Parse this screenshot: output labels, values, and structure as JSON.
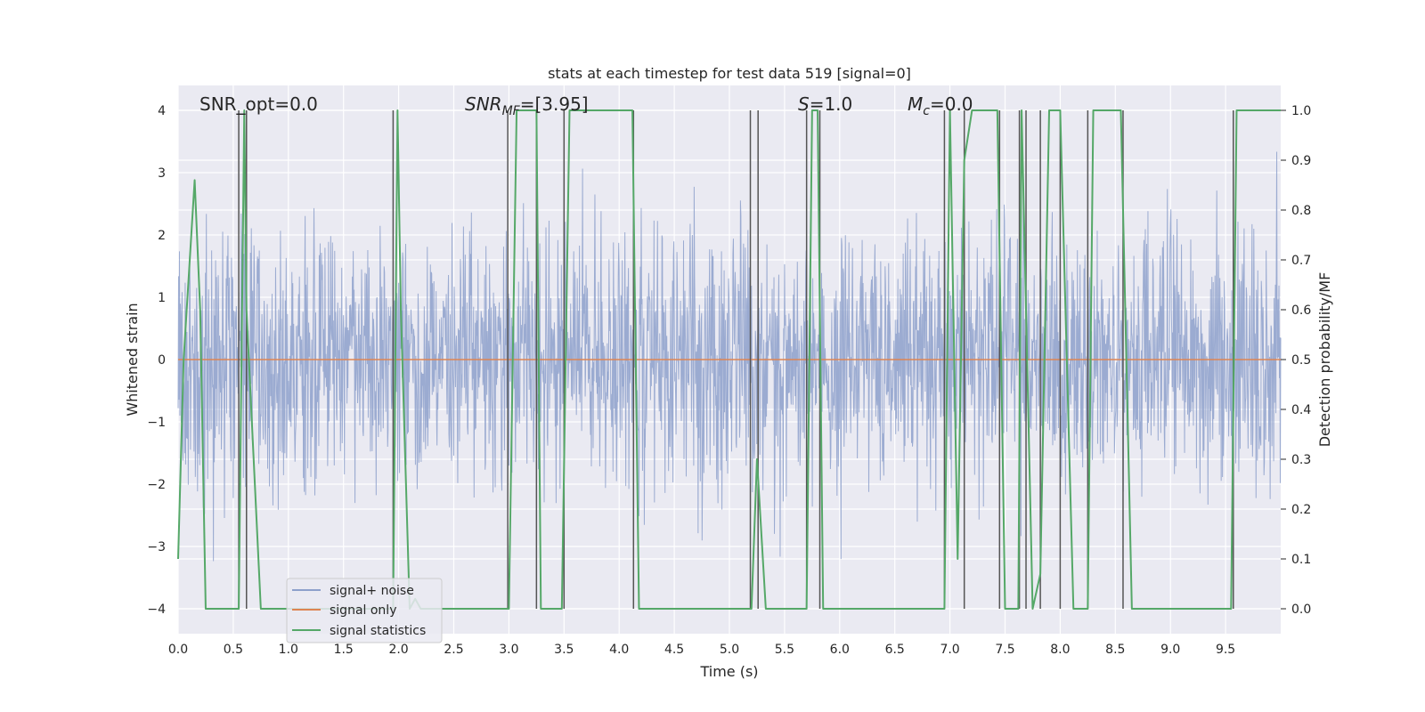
{
  "chart_data": {
    "type": "line",
    "title": "stats at each timestep for test data 519 [signal=0]",
    "xlabel": "Time (s)",
    "ylabel_left": "Whitened strain",
    "ylabel_right": "Detection probability/MF",
    "xlim": [
      0.0,
      10.0
    ],
    "ylim_left": [
      -4.4,
      4.4
    ],
    "ylim_right": [
      -0.05,
      1.05
    ],
    "x_ticks": [
      0.0,
      0.5,
      1.0,
      1.5,
      2.0,
      2.5,
      3.0,
      3.5,
      4.0,
      4.5,
      5.0,
      5.5,
      6.0,
      6.5,
      7.0,
      7.5,
      8.0,
      8.5,
      9.0,
      9.5
    ],
    "x_tick_labels": [
      "0.0",
      "0.5",
      "1.0",
      "1.5",
      "2.0",
      "2.5",
      "3.0",
      "3.5",
      "4.0",
      "4.5",
      "5.0",
      "5.5",
      "6.0",
      "6.5",
      "7.0",
      "7.5",
      "8.0",
      "8.5",
      "9.0",
      "9.5"
    ],
    "y_left_ticks": [
      4,
      3,
      2,
      1,
      0,
      -1,
      -2,
      -3,
      -4
    ],
    "y_left_tick_labels": [
      "4",
      "3",
      "2",
      "1",
      "0",
      "−1",
      "−2",
      "−3",
      "−4"
    ],
    "y_right_ticks": [
      1.0,
      0.9,
      0.8,
      0.7,
      0.6,
      0.5,
      0.4,
      0.3,
      0.2,
      0.1,
      0.0
    ],
    "y_right_tick_labels": [
      "1.0",
      "0.9",
      "0.8",
      "0.7",
      "0.6",
      "0.5",
      "0.4",
      "0.3",
      "0.2",
      "0.1",
      "0.0"
    ],
    "grid": true,
    "legend_position": "lower-left",
    "annotations": {
      "snr_opt": "SNR_opt=0.0",
      "snr_mf_prefix": "SNR",
      "snr_mf_sub": "MF",
      "snr_mf_value": "=[3.95]",
      "s_var": "S",
      "s_value": "=1.0",
      "mc_var": "M",
      "mc_sub": "c",
      "mc_value": "=0.0"
    },
    "noise_series": {
      "name": "signal+ noise",
      "color": "#8da0cb",
      "dt": 0.004,
      "sigma": 1.0,
      "clip": 4.0,
      "seed": 519
    },
    "signal_series": {
      "name": "signal only",
      "color": "#dd8452",
      "value": 0.0
    },
    "stat_series": {
      "name": "signal statistics",
      "color": "#55a868",
      "x": [
        0.0,
        0.05,
        0.15,
        0.2,
        0.25,
        0.55,
        0.6,
        0.62,
        0.75,
        1.95,
        1.97,
        1.99,
        2.02,
        2.1,
        2.15,
        2.2,
        2.25,
        2.85,
        2.95,
        3.0,
        3.07,
        3.25,
        3.29,
        3.48,
        3.55,
        4.12,
        4.18,
        5.2,
        5.25,
        5.33,
        5.7,
        5.75,
        5.8,
        5.85,
        6.0,
        6.95,
        7.0,
        7.07,
        7.13,
        7.2,
        7.43,
        7.5,
        7.62,
        7.65,
        7.75,
        7.82,
        7.9,
        8.0,
        8.12,
        8.25,
        8.3,
        8.55,
        8.65,
        9.35,
        9.5,
        9.55,
        9.6,
        9.65,
        10.0
      ],
      "y": [
        0.1,
        0.5,
        0.86,
        0.6,
        0.0,
        0.0,
        1.0,
        0.6,
        0.0,
        0.0,
        0.5,
        1.0,
        0.6,
        0.0,
        0.02,
        0.0,
        0.0,
        0.0,
        0.0,
        0.0,
        1.0,
        1.0,
        0.0,
        0.0,
        1.0,
        1.0,
        0.0,
        0.0,
        0.3,
        0.0,
        0.0,
        1.0,
        1.0,
        0.0,
        0.0,
        0.0,
        1.0,
        0.1,
        0.9,
        1.0,
        1.0,
        0.0,
        0.0,
        1.0,
        0.0,
        0.07,
        1.0,
        1.0,
        0.0,
        0.0,
        1.0,
        1.0,
        0.0,
        0.0,
        0.0,
        0.0,
        1.0,
        1.0,
        1.0
      ]
    },
    "vlines": {
      "color": "#555555",
      "x": [
        0.55,
        0.62,
        1.95,
        2.99,
        3.25,
        3.5,
        4.13,
        5.19,
        5.26,
        5.7,
        5.82,
        6.95,
        7.13,
        7.45,
        7.63,
        7.69,
        7.82,
        8.0,
        8.25,
        8.57,
        9.57
      ]
    },
    "legend_entries": [
      "signal+ noise",
      "signal only",
      "signal statistics"
    ]
  }
}
